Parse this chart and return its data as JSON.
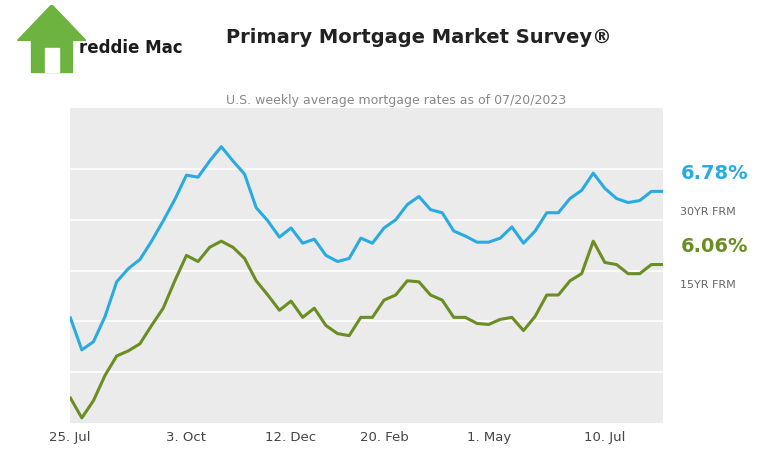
{
  "title": "Primary Mortgage Market Survey®",
  "subtitle": "U.S. weekly average mortgage rates as of 07/20/2023",
  "line30y_color": "#29ABE2",
  "line15y_color": "#6B8E23",
  "background_color": "#FFFFFF",
  "plot_bg_color": "#EBEBEB",
  "grid_color": "#FFFFFF",
  "title_color": "#222222",
  "subtitle_color": "#888888",
  "xlabel_ticks": [
    "25. Jul",
    "3. Oct",
    "12. Dec",
    "20. Feb",
    "1. May",
    "10. Jul"
  ],
  "ylim": [
    4.5,
    7.6
  ],
  "yticks": [
    5.0,
    5.5,
    6.0,
    6.5,
    7.0
  ],
  "x_30y": [
    0,
    1,
    2,
    3,
    4,
    5,
    6,
    7,
    8,
    9,
    10,
    11,
    12,
    13,
    14,
    15,
    16,
    17,
    18,
    19,
    20,
    21,
    22,
    23,
    24,
    25,
    26,
    27,
    28,
    29,
    30,
    31,
    32,
    33,
    34,
    35,
    36,
    37,
    38,
    39,
    40,
    41,
    42,
    43,
    44,
    45,
    46,
    47,
    48,
    49,
    50,
    51
  ],
  "y_30y": [
    5.54,
    5.22,
    5.3,
    5.55,
    5.89,
    6.02,
    6.11,
    6.29,
    6.49,
    6.7,
    6.94,
    6.92,
    7.08,
    7.22,
    7.08,
    6.95,
    6.62,
    6.49,
    6.33,
    6.42,
    6.27,
    6.31,
    6.15,
    6.09,
    6.12,
    6.32,
    6.27,
    6.42,
    6.5,
    6.65,
    6.73,
    6.6,
    6.57,
    6.39,
    6.34,
    6.28,
    6.28,
    6.32,
    6.43,
    6.27,
    6.39,
    6.57,
    6.57,
    6.71,
    6.79,
    6.96,
    6.81,
    6.71,
    6.67,
    6.69,
    6.78,
    6.78
  ],
  "x_15y": [
    0,
    1,
    2,
    3,
    4,
    5,
    6,
    7,
    8,
    9,
    10,
    11,
    12,
    13,
    14,
    15,
    16,
    17,
    18,
    19,
    20,
    21,
    22,
    23,
    24,
    25,
    26,
    27,
    28,
    29,
    30,
    31,
    32,
    33,
    34,
    35,
    36,
    37,
    38,
    39,
    40,
    41,
    42,
    43,
    44,
    45,
    46,
    47,
    48,
    49,
    50,
    51
  ],
  "y_15y": [
    4.75,
    4.55,
    4.72,
    4.97,
    5.16,
    5.21,
    5.28,
    5.46,
    5.63,
    5.9,
    6.15,
    6.09,
    6.23,
    6.29,
    6.23,
    6.12,
    5.9,
    5.76,
    5.61,
    5.7,
    5.54,
    5.63,
    5.46,
    5.38,
    5.36,
    5.54,
    5.54,
    5.71,
    5.76,
    5.9,
    5.89,
    5.76,
    5.71,
    5.54,
    5.54,
    5.48,
    5.47,
    5.52,
    5.54,
    5.41,
    5.55,
    5.76,
    5.76,
    5.9,
    5.97,
    6.29,
    6.08,
    6.06,
    5.97,
    5.97,
    6.06,
    6.06
  ],
  "xtick_positions": [
    0,
    10,
    19,
    27,
    36,
    46
  ],
  "linewidth": 2.2,
  "label_30y_value": "6.78%",
  "label_30y_sub": "30YR FRM",
  "label_15y_value": "6.06%",
  "label_15y_sub": "15YR FRM",
  "freddie_green": "#6DB33F",
  "freddie_blue": "#29ABE2",
  "freddie_dark": "#1A1A1A"
}
